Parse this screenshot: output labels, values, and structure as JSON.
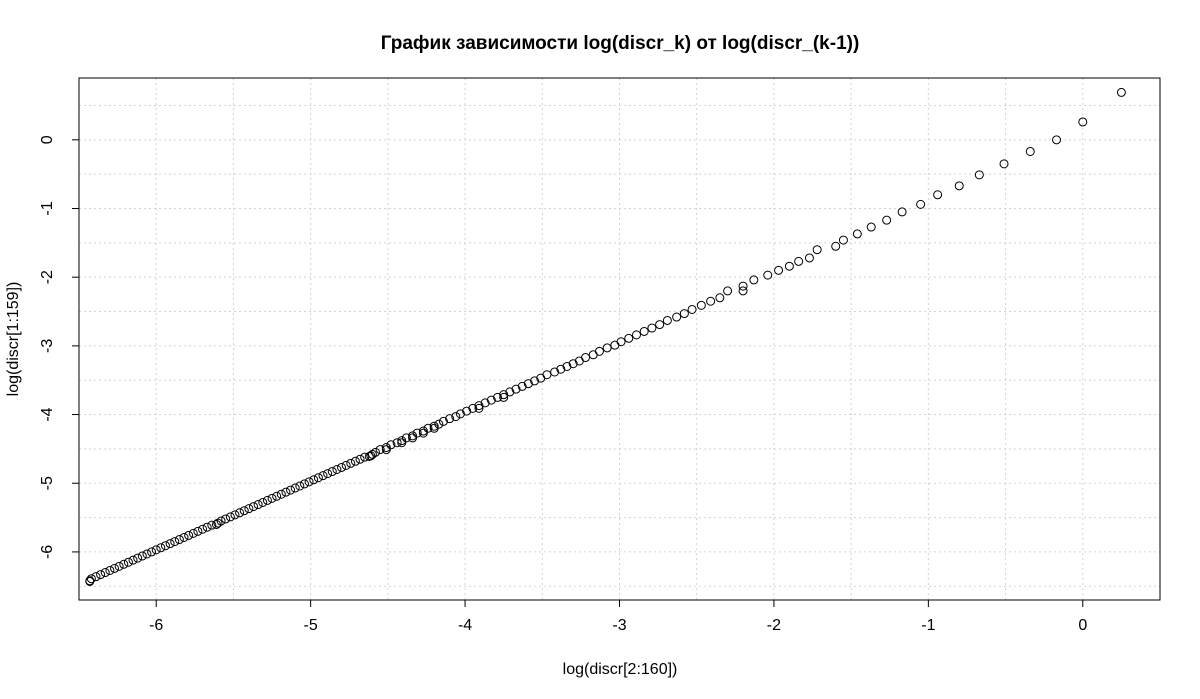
{
  "chart_data": {
    "type": "scatter",
    "title": "График зависимости log(discr_k) от log(discr_(k-1))",
    "xlabel": "log(discr[2:160])",
    "ylabel": "log(discr[1:159])",
    "xlim": [
      -6.5,
      0.5
    ],
    "ylim": [
      -6.7,
      0.9
    ],
    "x_ticks": [
      -6,
      -5,
      -4,
      -3,
      -2,
      -1,
      0
    ],
    "y_ticks": [
      -6,
      -5,
      -4,
      -3,
      -2,
      -1,
      0
    ],
    "x_minor_grid": [
      -6.5,
      -5.5,
      -4.5,
      -3.5,
      -2.5,
      -1.5,
      -0.5
    ],
    "y_minor_grid": [
      -6.5,
      -5.5,
      -4.5,
      -3.5,
      -2.5,
      -1.5,
      -0.5,
      0.5
    ],
    "grid": true,
    "legend": false,
    "series": [
      {
        "points": [
          [
            0.25,
            0.69
          ],
          [
            0.0,
            0.26
          ],
          [
            -0.17,
            0.0
          ],
          [
            -0.34,
            -0.17
          ],
          [
            -0.51,
            -0.35
          ],
          [
            -0.67,
            -0.51
          ],
          [
            -0.8,
            -0.67
          ],
          [
            -0.94,
            -0.8
          ],
          [
            -1.05,
            -0.94
          ],
          [
            -1.17,
            -1.05
          ],
          [
            -1.27,
            -1.17
          ],
          [
            -1.37,
            -1.27
          ],
          [
            -1.46,
            -1.37
          ],
          [
            -1.55,
            -1.46
          ],
          [
            -1.6,
            -1.55
          ],
          [
            -1.72,
            -1.6
          ],
          [
            -1.77,
            -1.72
          ],
          [
            -1.84,
            -1.77
          ],
          [
            -1.9,
            -1.84
          ],
          [
            -1.97,
            -1.9
          ],
          [
            -2.04,
            -1.97
          ],
          [
            -2.13,
            -2.04
          ],
          [
            -2.2,
            -2.13
          ],
          [
            -2.2,
            -2.2
          ],
          [
            -2.3,
            -2.2
          ],
          [
            -2.35,
            -2.3
          ],
          [
            -2.41,
            -2.35
          ],
          [
            -2.47,
            -2.41
          ],
          [
            -2.53,
            -2.47
          ],
          [
            -2.58,
            -2.53
          ],
          [
            -2.63,
            -2.58
          ],
          [
            -2.69,
            -2.63
          ],
          [
            -2.74,
            -2.69
          ],
          [
            -2.79,
            -2.74
          ],
          [
            -2.84,
            -2.79
          ],
          [
            -2.89,
            -2.84
          ],
          [
            -2.94,
            -2.89
          ],
          [
            -2.99,
            -2.94
          ],
          [
            -3.03,
            -2.99
          ],
          [
            -3.08,
            -3.03
          ],
          [
            -3.13,
            -3.08
          ],
          [
            -3.17,
            -3.13
          ],
          [
            -3.22,
            -3.17
          ],
          [
            -3.26,
            -3.22
          ],
          [
            -3.3,
            -3.26
          ],
          [
            -3.34,
            -3.3
          ],
          [
            -3.38,
            -3.34
          ],
          [
            -3.42,
            -3.38
          ],
          [
            -3.47,
            -3.42
          ],
          [
            -3.51,
            -3.47
          ],
          [
            -3.55,
            -3.51
          ],
          [
            -3.59,
            -3.55
          ],
          [
            -3.63,
            -3.59
          ],
          [
            -3.67,
            -3.63
          ],
          [
            -3.71,
            -3.67
          ],
          [
            -3.75,
            -3.71
          ],
          [
            -3.75,
            -3.75
          ],
          [
            -3.79,
            -3.75
          ],
          [
            -3.83,
            -3.79
          ],
          [
            -3.87,
            -3.83
          ],
          [
            -3.91,
            -3.87
          ],
          [
            -3.91,
            -3.91
          ],
          [
            -3.95,
            -3.91
          ],
          [
            -3.99,
            -3.95
          ],
          [
            -4.03,
            -3.99
          ],
          [
            -4.06,
            -4.03
          ],
          [
            -4.1,
            -4.06
          ],
          [
            -4.14,
            -4.1
          ],
          [
            -4.17,
            -4.14
          ],
          [
            -4.2,
            -4.17
          ],
          [
            -4.2,
            -4.2
          ],
          [
            -4.24,
            -4.2
          ],
          [
            -4.27,
            -4.24
          ],
          [
            -4.27,
            -4.27
          ],
          [
            -4.31,
            -4.27
          ],
          [
            -4.34,
            -4.31
          ],
          [
            -4.34,
            -4.34
          ],
          [
            -4.38,
            -4.34
          ],
          [
            -4.41,
            -4.38
          ],
          [
            -4.41,
            -4.41
          ],
          [
            -4.44,
            -4.41
          ],
          [
            -4.48,
            -4.44
          ],
          [
            -4.51,
            -4.48
          ],
          [
            -4.51,
            -4.51
          ],
          [
            -4.55,
            -4.51
          ],
          [
            -4.58,
            -4.55
          ],
          [
            -4.6,
            -4.58
          ],
          [
            -4.61,
            -4.6
          ],
          [
            -4.62,
            -4.61
          ],
          [
            -4.65,
            -4.62
          ],
          [
            -4.68,
            -4.65
          ],
          [
            -4.71,
            -4.68
          ],
          [
            -4.74,
            -4.71
          ],
          [
            -4.77,
            -4.74
          ],
          [
            -4.8,
            -4.77
          ],
          [
            -4.83,
            -4.8
          ],
          [
            -4.86,
            -4.83
          ],
          [
            -4.89,
            -4.86
          ],
          [
            -4.92,
            -4.89
          ],
          [
            -4.95,
            -4.92
          ],
          [
            -4.98,
            -4.95
          ],
          [
            -5.01,
            -4.98
          ],
          [
            -5.04,
            -5.01
          ],
          [
            -5.07,
            -5.04
          ],
          [
            -5.1,
            -5.07
          ],
          [
            -5.13,
            -5.1
          ],
          [
            -5.16,
            -5.13
          ],
          [
            -5.19,
            -5.16
          ],
          [
            -5.22,
            -5.19
          ],
          [
            -5.25,
            -5.22
          ],
          [
            -5.28,
            -5.25
          ],
          [
            -5.31,
            -5.28
          ],
          [
            -5.34,
            -5.31
          ],
          [
            -5.37,
            -5.34
          ],
          [
            -5.4,
            -5.37
          ],
          [
            -5.43,
            -5.4
          ],
          [
            -5.46,
            -5.43
          ],
          [
            -5.49,
            -5.46
          ],
          [
            -5.52,
            -5.49
          ],
          [
            -5.55,
            -5.52
          ],
          [
            -5.58,
            -5.55
          ],
          [
            -5.6,
            -5.58
          ],
          [
            -5.61,
            -5.6
          ],
          [
            -5.64,
            -5.61
          ],
          [
            -5.67,
            -5.64
          ],
          [
            -5.7,
            -5.67
          ],
          [
            -5.73,
            -5.7
          ],
          [
            -5.76,
            -5.73
          ],
          [
            -5.79,
            -5.76
          ],
          [
            -5.82,
            -5.79
          ],
          [
            -5.85,
            -5.82
          ],
          [
            -5.88,
            -5.85
          ],
          [
            -5.91,
            -5.88
          ],
          [
            -5.94,
            -5.91
          ],
          [
            -5.97,
            -5.94
          ],
          [
            -6.0,
            -5.97
          ],
          [
            -6.03,
            -6.0
          ],
          [
            -6.06,
            -6.03
          ],
          [
            -6.09,
            -6.06
          ],
          [
            -6.12,
            -6.09
          ],
          [
            -6.15,
            -6.12
          ],
          [
            -6.18,
            -6.15
          ],
          [
            -6.21,
            -6.18
          ],
          [
            -6.24,
            -6.21
          ],
          [
            -6.27,
            -6.24
          ],
          [
            -6.3,
            -6.27
          ],
          [
            -6.33,
            -6.3
          ],
          [
            -6.36,
            -6.33
          ],
          [
            -6.39,
            -6.36
          ],
          [
            -6.42,
            -6.39
          ],
          [
            -6.43,
            -6.42
          ],
          [
            -6.43,
            -6.43
          ]
        ]
      }
    ]
  }
}
